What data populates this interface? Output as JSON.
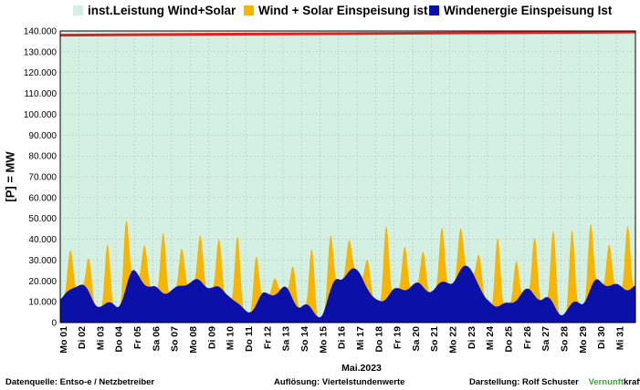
{
  "legend": {
    "installed": "inst.Leistung Wind+Solar",
    "wind_solar": "Wind + Solar Einspeisung ist",
    "wind": "Windenergie Einspeisung Ist"
  },
  "colors": {
    "installed_fill": "#d4f0e2",
    "installed_line": "#e02020",
    "wind_solar": "#f7b500",
    "wind": "#0a10a8"
  },
  "footer": {
    "source": "Datenquelle:  Entso-e  / Netzbetreiber",
    "resolution": "Auflösung: Viertelstundenwerte",
    "author": "Darstellung:  Rolf Schuster",
    "brand_part1": "Vernunft",
    "brand_part2": "kraft"
  },
  "chart_data": {
    "type": "area",
    "ylabel": "[P] =  MW",
    "xlabel": "Mai.2023",
    "ylim": [
      0,
      140000
    ],
    "yticks": [
      "0",
      "10.000",
      "20.000",
      "30.000",
      "40.000",
      "50.000",
      "60.000",
      "70.000",
      "80.000",
      "90.000",
      "100.000",
      "110.000",
      "120.000",
      "130.000",
      "140.000"
    ],
    "grid": true,
    "days": [
      "Mo 01",
      "Di 02",
      "Mi 03",
      "Do 04",
      "Fr 05",
      "Sa 06",
      "So 07",
      "Mo 08",
      "Di 09",
      "Mi 10",
      "Do 11",
      "Fr 12",
      "Sa 13",
      "So 14",
      "Mo 15",
      "Di 16",
      "Mi 17",
      "Do 18",
      "Fr 19",
      "Sa 20",
      "So 21",
      "Mo 22",
      "Di 23",
      "Mi 24",
      "Do 25",
      "Fr 26",
      "Sa 27",
      "So 28",
      "Mo 29",
      "Di 30",
      "Mi 31"
    ],
    "series": [
      {
        "name": "inst.Leistung Wind+Solar",
        "start": 138000,
        "end": 139500
      },
      {
        "name": "Wind + Solar Einspeisung ist",
        "daily_peak": [
          30000,
          35000,
          37000,
          40000,
          43000,
          45000,
          33000,
          42000,
          41000,
          46000,
          28000,
          21000,
          32000,
          37000,
          30000,
          37000,
          39000,
          45000,
          36000,
          35000,
          42000,
          40000,
          42000,
          43000,
          27000,
          43000,
          47000,
          40000,
          41000,
          40000,
          48000
        ]
      },
      {
        "name": "Windenergie Einspeisung Ist",
        "daily_wind": [
          11000,
          19000,
          9000,
          8000,
          24000,
          16000,
          15000,
          20000,
          18000,
          14000,
          5000,
          13000,
          16000,
          8000,
          4000,
          22000,
          25000,
          10000,
          15000,
          18000,
          16000,
          20000,
          27000,
          10000,
          8000,
          15000,
          12000,
          5000,
          10000,
          20000,
          17000
        ]
      }
    ]
  }
}
